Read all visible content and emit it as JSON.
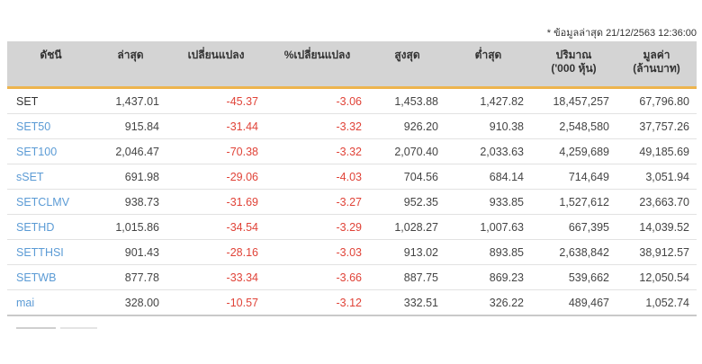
{
  "meta": {
    "timestamp_note": "* ข้อมูลล่าสุด 21/12/2563 12:36:00"
  },
  "colors": {
    "header_bg": "#d4d4d4",
    "accent_gold": "#edb44e",
    "negative_red": "#e04338",
    "link_blue": "#5b9bd5"
  },
  "table": {
    "columns": [
      {
        "label": "ดัชนี",
        "sub": ""
      },
      {
        "label": "ล่าสุด",
        "sub": ""
      },
      {
        "label": "เปลี่ยนแปลง",
        "sub": ""
      },
      {
        "label": "%เปลี่ยนแปลง",
        "sub": ""
      },
      {
        "label": "สูงสุด",
        "sub": ""
      },
      {
        "label": "ต่ำสุด",
        "sub": ""
      },
      {
        "label": "ปริมาณ",
        "sub": "('000 หุ้น)"
      },
      {
        "label": "มูลค่า",
        "sub": "(ล้านบาท)"
      }
    ],
    "rows": [
      {
        "index": "SET",
        "is_link": false,
        "last": "1,437.01",
        "change": "-45.37",
        "pct_change": "-3.06",
        "high": "1,453.88",
        "low": "1,427.82",
        "volume": "18,457,257",
        "value": "67,796.80"
      },
      {
        "index": "SET50",
        "is_link": true,
        "last": "915.84",
        "change": "-31.44",
        "pct_change": "-3.32",
        "high": "926.20",
        "low": "910.38",
        "volume": "2,548,580",
        "value": "37,757.26"
      },
      {
        "index": "SET100",
        "is_link": true,
        "last": "2,046.47",
        "change": "-70.38",
        "pct_change": "-3.32",
        "high": "2,070.40",
        "low": "2,033.63",
        "volume": "4,259,689",
        "value": "49,185.69"
      },
      {
        "index": "sSET",
        "is_link": true,
        "last": "691.98",
        "change": "-29.06",
        "pct_change": "-4.03",
        "high": "704.56",
        "low": "684.14",
        "volume": "714,649",
        "value": "3,051.94"
      },
      {
        "index": "SETCLMV",
        "is_link": true,
        "last": "938.73",
        "change": "-31.69",
        "pct_change": "-3.27",
        "high": "952.35",
        "low": "933.85",
        "volume": "1,527,612",
        "value": "23,663.70"
      },
      {
        "index": "SETHD",
        "is_link": true,
        "last": "1,015.86",
        "change": "-34.54",
        "pct_change": "-3.29",
        "high": "1,028.27",
        "low": "1,007.63",
        "volume": "667,395",
        "value": "14,039.52"
      },
      {
        "index": "SETTHSI",
        "is_link": true,
        "last": "901.43",
        "change": "-28.16",
        "pct_change": "-3.03",
        "high": "913.02",
        "low": "893.85",
        "volume": "2,638,842",
        "value": "38,912.57"
      },
      {
        "index": "SETWB",
        "is_link": true,
        "last": "877.78",
        "change": "-33.34",
        "pct_change": "-3.66",
        "high": "887.75",
        "low": "869.23",
        "volume": "539,662",
        "value": "12,050.54"
      },
      {
        "index": "mai",
        "is_link": true,
        "last": "328.00",
        "change": "-10.57",
        "pct_change": "-3.12",
        "high": "332.51",
        "low": "326.22",
        "volume": "489,467",
        "value": "1,052.74"
      }
    ]
  }
}
